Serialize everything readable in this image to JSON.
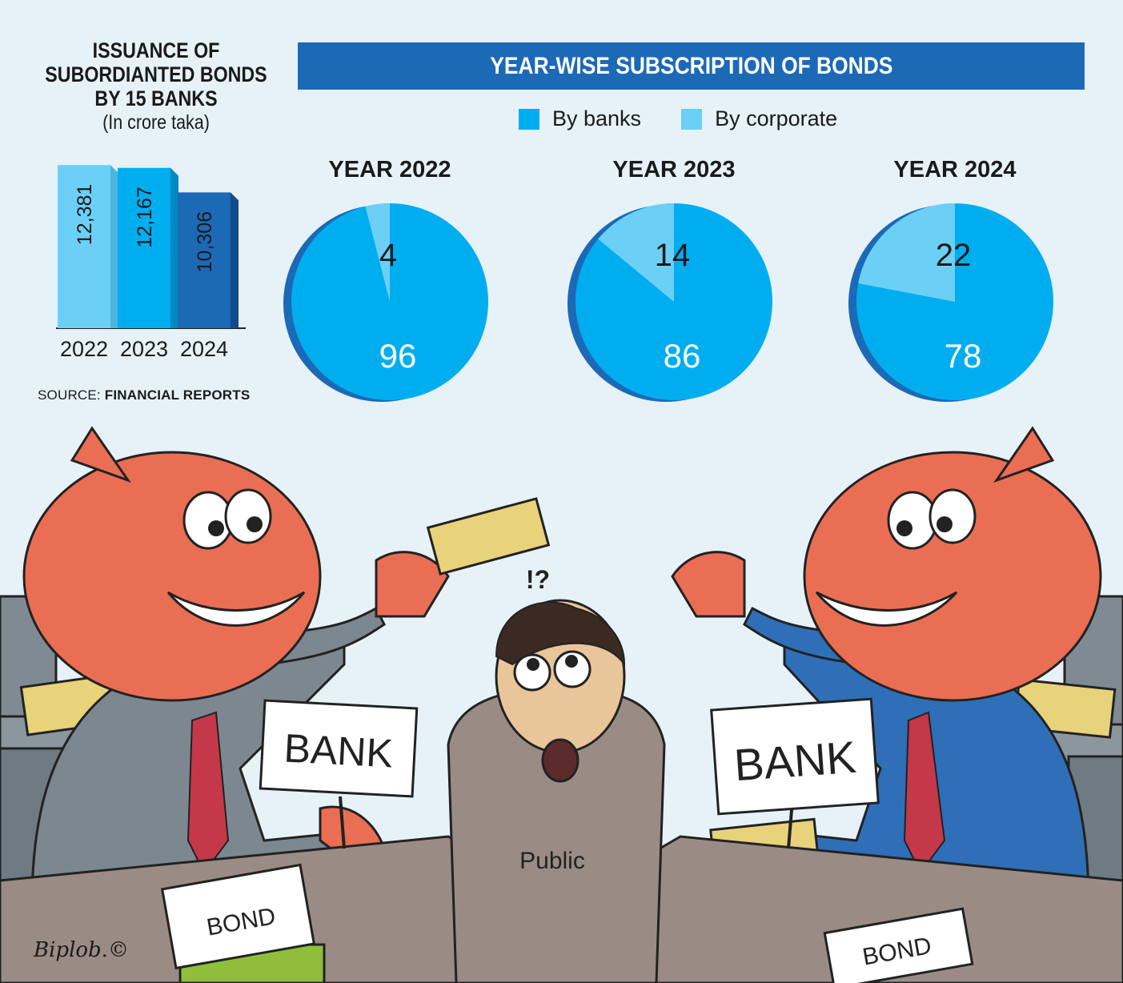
{
  "left_chart": {
    "title_lines": [
      "ISSUANCE OF",
      "SUBORDIANTED BONDS",
      "BY 15 BANKS"
    ],
    "unit": "(In crore taka)",
    "source_label": "SOURCE:",
    "source_value": "FINANCIAL REPORTS"
  },
  "banner": {
    "title": "YEAR-WISE SUBSCRIPTION OF BONDS"
  },
  "legend": [
    {
      "label": "By banks",
      "color": "#00aeef"
    },
    {
      "label": "By corporate",
      "color": "#6ccff6"
    }
  ],
  "illustration": {
    "sign_left": "BANK",
    "sign_right": "BANK",
    "bond_left": "BOND",
    "bond_right": "BOND",
    "shirt": "Public",
    "question": "!?",
    "signature": "Biplob.©"
  },
  "chart_data": [
    {
      "type": "bar",
      "categories": [
        "2022",
        "2023",
        "2024"
      ],
      "values": [
        12381,
        12167,
        10306
      ],
      "value_labels": [
        "12,381",
        "12,167",
        "10,306"
      ],
      "colors": [
        "#6ccff6",
        "#00aeef",
        "#1c69b6"
      ],
      "ylim": [
        0,
        13000
      ]
    },
    {
      "type": "pie",
      "title": "YEAR 2022",
      "slices": [
        {
          "name": "By banks",
          "value": 96
        },
        {
          "name": "By corporate",
          "value": 4
        }
      ]
    },
    {
      "type": "pie",
      "title": "YEAR 2023",
      "slices": [
        {
          "name": "By banks",
          "value": 86
        },
        {
          "name": "By corporate",
          "value": 14
        }
      ]
    },
    {
      "type": "pie",
      "title": "YEAR 2024",
      "slices": [
        {
          "name": "By banks",
          "value": 78
        },
        {
          "name": "By corporate",
          "value": 22
        }
      ]
    }
  ]
}
